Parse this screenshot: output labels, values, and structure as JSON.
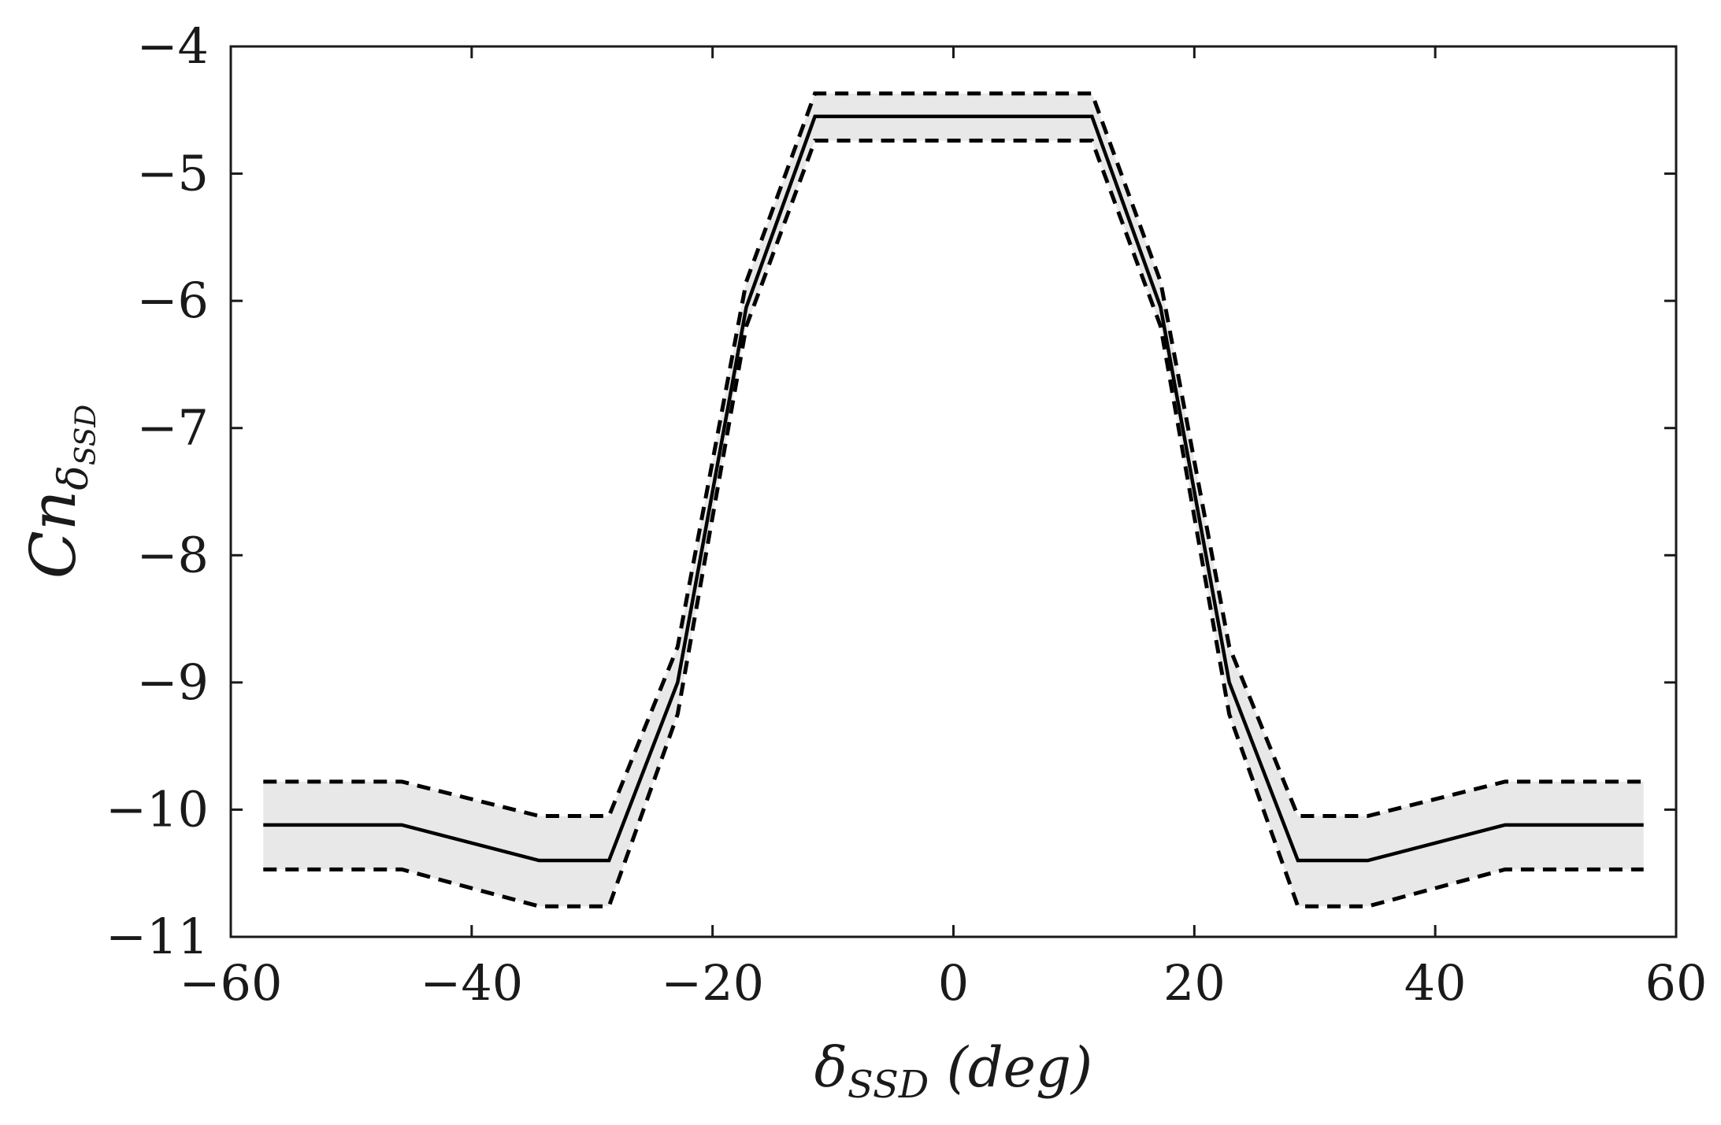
{
  "chart_data": {
    "type": "line",
    "title": "",
    "xlabel": "δ_SSD (deg)",
    "ylabel": "Cn_δ_SSD",
    "xlabel_parts": {
      "main": "δ",
      "sub": "SSD",
      "rest": " (deg)"
    },
    "ylabel_parts": {
      "main": "Cn",
      "sub": "δ",
      "subsub": "SSD"
    },
    "xlim": [
      -60,
      60
    ],
    "ylim": [
      -11,
      -4
    ],
    "xticks": [
      -60,
      -40,
      -20,
      0,
      20,
      40,
      60
    ],
    "yticks": [
      -4,
      -5,
      -6,
      -7,
      -8,
      -9,
      -10,
      -11
    ],
    "xtick_labels": [
      "−60",
      "−40",
      "−20",
      "0",
      "20",
      "40",
      "60"
    ],
    "ytick_labels": [
      "−4",
      "−5",
      "−6",
      "−7",
      "−8",
      "−9",
      "−10",
      "−11"
    ],
    "grid": false,
    "legend": "none",
    "x": [
      -57.3,
      -45.8,
      -34.4,
      -28.6,
      -22.9,
      -17.2,
      -11.5,
      11.5,
      17.2,
      22.9,
      28.6,
      34.4,
      45.8,
      57.3
    ],
    "series": [
      {
        "role": "mean",
        "style": "solid",
        "values": [
          -10.12,
          -10.12,
          -10.4,
          -10.4,
          -9.0,
          -6.05,
          -4.55,
          -4.55,
          -6.05,
          -9.0,
          -10.4,
          -10.4,
          -10.12,
          -10.12
        ]
      },
      {
        "role": "upper-bound",
        "style": "dashed",
        "values": [
          -9.78,
          -9.78,
          -10.05,
          -10.05,
          -8.72,
          -5.85,
          -4.37,
          -4.37,
          -5.85,
          -8.72,
          -10.05,
          -10.05,
          -9.78,
          -9.78
        ]
      },
      {
        "role": "lower-bound",
        "style": "dashed",
        "values": [
          -10.47,
          -10.47,
          -10.76,
          -10.76,
          -9.25,
          -6.2,
          -4.74,
          -4.74,
          -6.2,
          -9.25,
          -10.76,
          -10.76,
          -10.47,
          -10.47
        ]
      }
    ],
    "colors": {
      "band": "#e8e8e8",
      "line": "#000000",
      "axes": "#1a1a1a"
    }
  }
}
